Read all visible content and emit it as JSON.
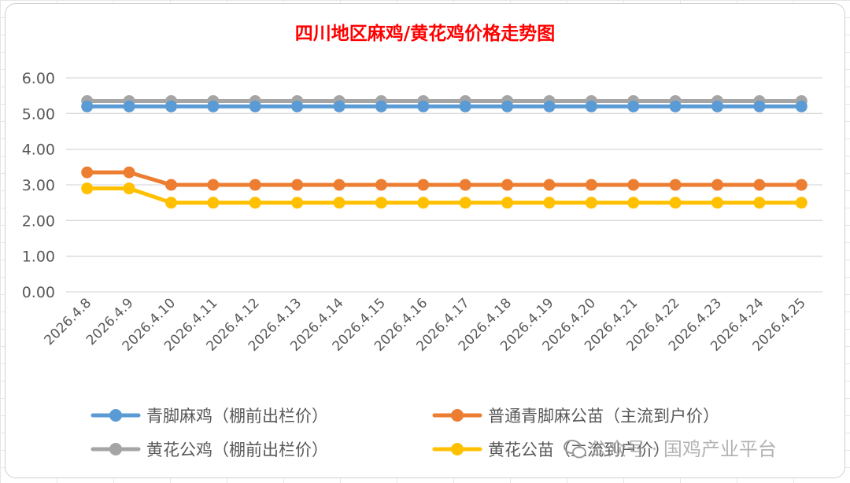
{
  "chart_data": {
    "type": "line",
    "title": "四川地区麻鸡/黄花鸡价格走势图",
    "xlabel": "",
    "ylabel": "",
    "ylim": [
      0,
      6
    ],
    "yticks": [
      "0.00",
      "1.00",
      "2.00",
      "3.00",
      "4.00",
      "5.00",
      "6.00"
    ],
    "categories": [
      "2026.4.8",
      "2026.4.9",
      "2026.4.10",
      "2026.4.11",
      "2026.4.12",
      "2026.4.13",
      "2026.4.14",
      "2026.4.15",
      "2026.4.16",
      "2026.4.17",
      "2026.4.18",
      "2026.4.19",
      "2026.4.20",
      "2026.4.21",
      "2026.4.22",
      "2026.4.23",
      "2026.4.24",
      "2026.4.25"
    ],
    "grid": true,
    "legend_position": "bottom",
    "series": [
      {
        "name": "青脚麻鸡（棚前出栏价）",
        "color": "#5b9bd5",
        "values": [
          5.2,
          5.2,
          5.2,
          5.2,
          5.2,
          5.2,
          5.2,
          5.2,
          5.2,
          5.2,
          5.2,
          5.2,
          5.2,
          5.2,
          5.2,
          5.2,
          5.2,
          5.2
        ]
      },
      {
        "name": "普通青脚麻公苗（主流到户价）",
        "color": "#ed7d31",
        "values": [
          3.35,
          3.35,
          3.0,
          3.0,
          3.0,
          3.0,
          3.0,
          3.0,
          3.0,
          3.0,
          3.0,
          3.0,
          3.0,
          3.0,
          3.0,
          3.0,
          3.0,
          3.0
        ]
      },
      {
        "name": "黄花公鸡（棚前出栏价）",
        "color": "#a5a5a5",
        "values": [
          5.35,
          5.35,
          5.35,
          5.35,
          5.35,
          5.35,
          5.35,
          5.35,
          5.35,
          5.35,
          5.35,
          5.35,
          5.35,
          5.35,
          5.35,
          5.35,
          5.35,
          5.35
        ]
      },
      {
        "name": "黄花公苗（主流到户价）",
        "color": "#ffc000",
        "values": [
          2.9,
          2.9,
          2.5,
          2.5,
          2.5,
          2.5,
          2.5,
          2.5,
          2.5,
          2.5,
          2.5,
          2.5,
          2.5,
          2.5,
          2.5,
          2.5,
          2.5,
          2.5
        ]
      }
    ]
  },
  "watermark": {
    "text": "公众号 · 国鸡产业平台",
    "icon": "wechat-icon",
    "color": "#9a9a9a"
  }
}
